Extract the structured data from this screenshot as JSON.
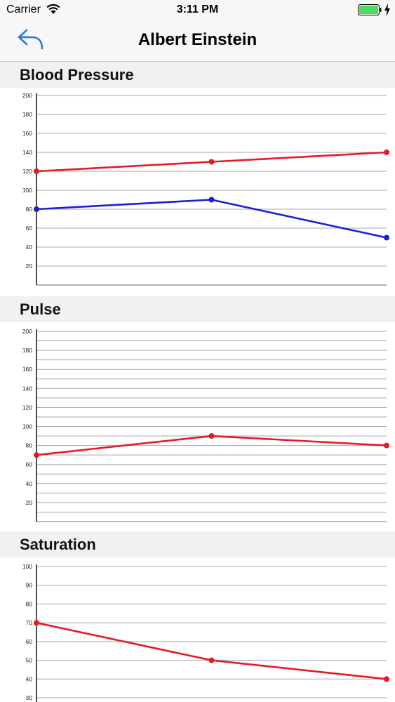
{
  "status_bar": {
    "carrier": "Carrier",
    "time": "3:11 PM",
    "battery_color": "#4cd964"
  },
  "nav": {
    "title": "Albert Einstein",
    "back_icon": "back-arrow-icon",
    "accent_color": "#2a7bde"
  },
  "sections": [
    {
      "title": "Blood Pressure"
    },
    {
      "title": "Pulse"
    },
    {
      "title": "Saturation"
    }
  ],
  "charts": [
    {
      "type": "line",
      "x": [
        1,
        2,
        3
      ],
      "ylim": [
        0,
        200
      ],
      "yticks": [
        20,
        40,
        60,
        80,
        100,
        120,
        140,
        160,
        180,
        200
      ],
      "grid": true,
      "series": [
        {
          "color": "#e41b23",
          "values": [
            120,
            130,
            140
          ]
        },
        {
          "color": "#1a1fd6",
          "values": [
            80,
            90,
            50
          ]
        }
      ]
    },
    {
      "type": "line",
      "x": [
        1,
        2,
        3
      ],
      "ylim": [
        0,
        200
      ],
      "yticks": [
        20,
        40,
        60,
        80,
        100,
        120,
        140,
        160,
        180,
        200
      ],
      "grid": true,
      "series": [
        {
          "color": "#e41b23",
          "values": [
            70,
            90,
            80
          ]
        }
      ]
    },
    {
      "type": "line",
      "x": [
        1,
        2,
        3
      ],
      "ylim": [
        30,
        100
      ],
      "yticks": [
        30,
        40,
        50,
        60,
        70,
        80,
        90,
        100
      ],
      "grid": true,
      "series": [
        {
          "color": "#e41b23",
          "values": [
            70,
            50,
            40
          ]
        }
      ]
    }
  ]
}
